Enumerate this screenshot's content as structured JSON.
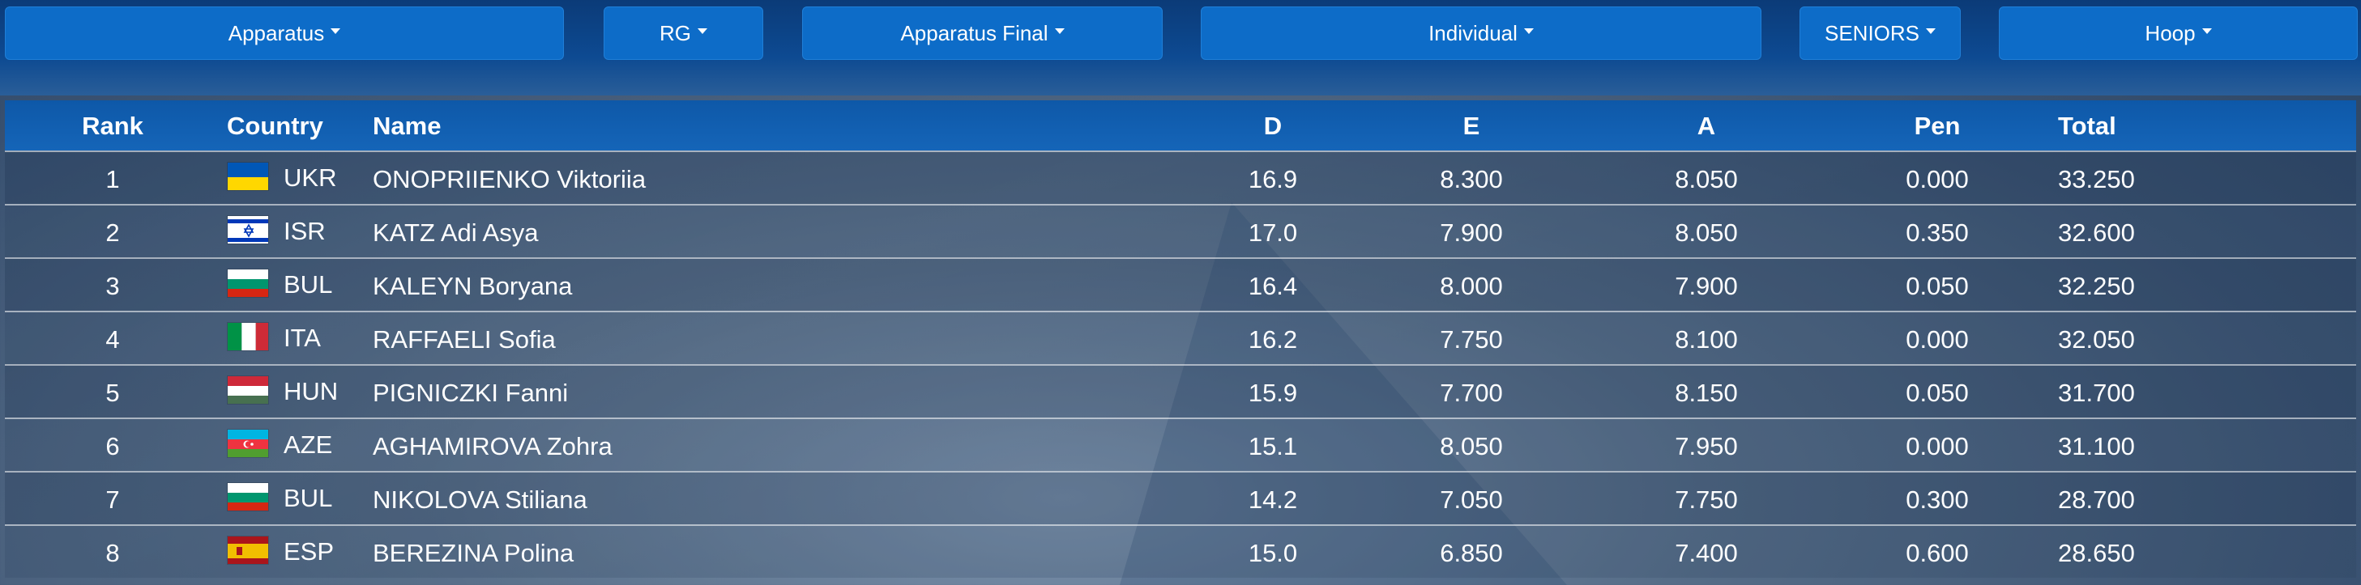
{
  "filters": [
    {
      "label": "Apparatus"
    },
    {
      "label": "RG"
    },
    {
      "label": "Apparatus Final"
    },
    {
      "label": "Individual"
    },
    {
      "label": "SENIORS"
    },
    {
      "label": "Hoop"
    }
  ],
  "table": {
    "headers": {
      "rank": "Rank",
      "country": "Country",
      "name": "Name",
      "d": "D",
      "e": "E",
      "a": "A",
      "pen": "Pen",
      "total": "Total"
    },
    "rows": [
      {
        "rank": "1",
        "country": "UKR",
        "flag": "ukr",
        "name": "ONOPRIIENKO Viktoriia",
        "d": "16.9",
        "e": "8.300",
        "a": "8.050",
        "pen": "0.000",
        "total": "33.250"
      },
      {
        "rank": "2",
        "country": "ISR",
        "flag": "isr",
        "name": "KATZ Adi Asya",
        "d": "17.0",
        "e": "7.900",
        "a": "8.050",
        "pen": "0.350",
        "total": "32.600"
      },
      {
        "rank": "3",
        "country": "BUL",
        "flag": "bul",
        "name": "KALEYN Boryana",
        "d": "16.4",
        "e": "8.000",
        "a": "7.900",
        "pen": "0.050",
        "total": "32.250"
      },
      {
        "rank": "4",
        "country": "ITA",
        "flag": "ita",
        "name": "RAFFAELI Sofia",
        "d": "16.2",
        "e": "7.750",
        "a": "8.100",
        "pen": "0.000",
        "total": "32.050"
      },
      {
        "rank": "5",
        "country": "HUN",
        "flag": "hun",
        "name": "PIGNICZKI Fanni",
        "d": "15.9",
        "e": "7.700",
        "a": "8.150",
        "pen": "0.050",
        "total": "31.700"
      },
      {
        "rank": "6",
        "country": "AZE",
        "flag": "aze",
        "name": "AGHAMIROVA Zohra",
        "d": "15.1",
        "e": "8.050",
        "a": "7.950",
        "pen": "0.000",
        "total": "31.100"
      },
      {
        "rank": "7",
        "country": "BUL",
        "flag": "bul",
        "name": "NIKOLOVA Stiliana",
        "d": "14.2",
        "e": "7.050",
        "a": "7.750",
        "pen": "0.300",
        "total": "28.700"
      },
      {
        "rank": "8",
        "country": "ESP",
        "flag": "esp",
        "name": "BEREZINA Polina",
        "d": "15.0",
        "e": "6.850",
        "a": "7.400",
        "pen": "0.600",
        "total": "28.650"
      }
    ]
  },
  "colors": {
    "filter_button": "#0d6cc8",
    "header_bar": "#0e58a8",
    "topbar": "#0b3b78"
  }
}
